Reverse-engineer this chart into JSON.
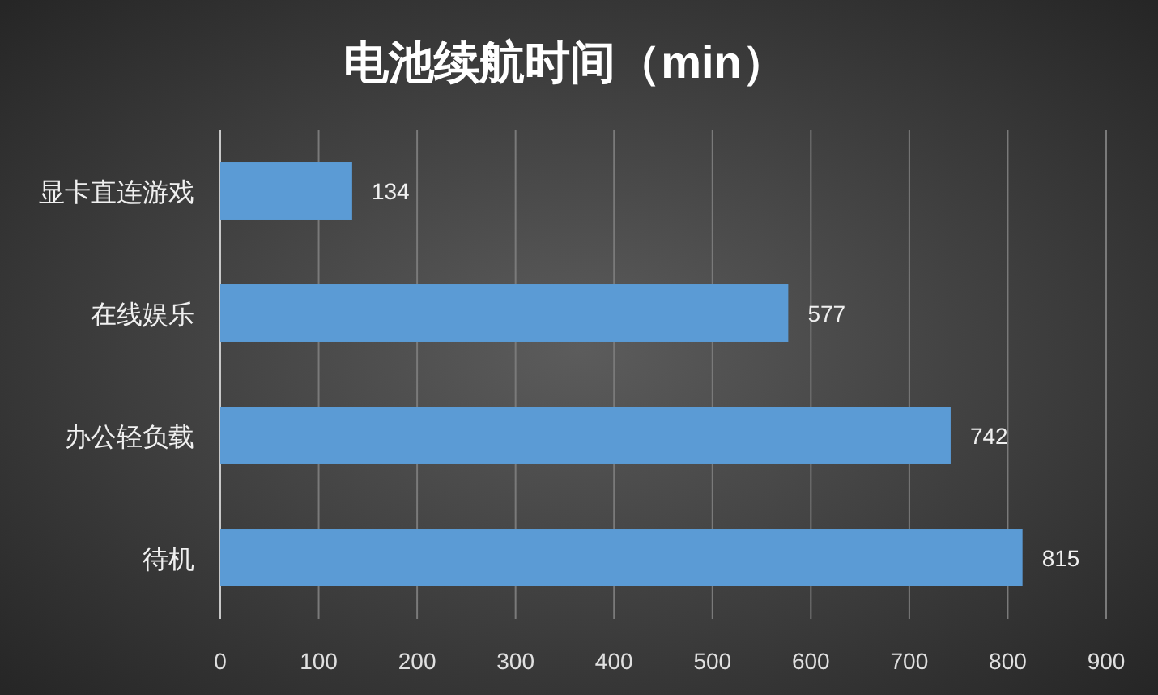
{
  "chart_data": {
    "type": "bar",
    "orientation": "horizontal",
    "title": "电池续航时间（min）",
    "categories": [
      "显卡直连游戏",
      "在线娱乐",
      "办公轻负载",
      "待机"
    ],
    "values": [
      134,
      577,
      742,
      815
    ],
    "color": "#5b9bd5",
    "xlim": [
      0,
      900
    ],
    "xticks": [
      0,
      100,
      200,
      300,
      400,
      500,
      600,
      700,
      800,
      900
    ],
    "grid": "x",
    "data_labels": true
  }
}
